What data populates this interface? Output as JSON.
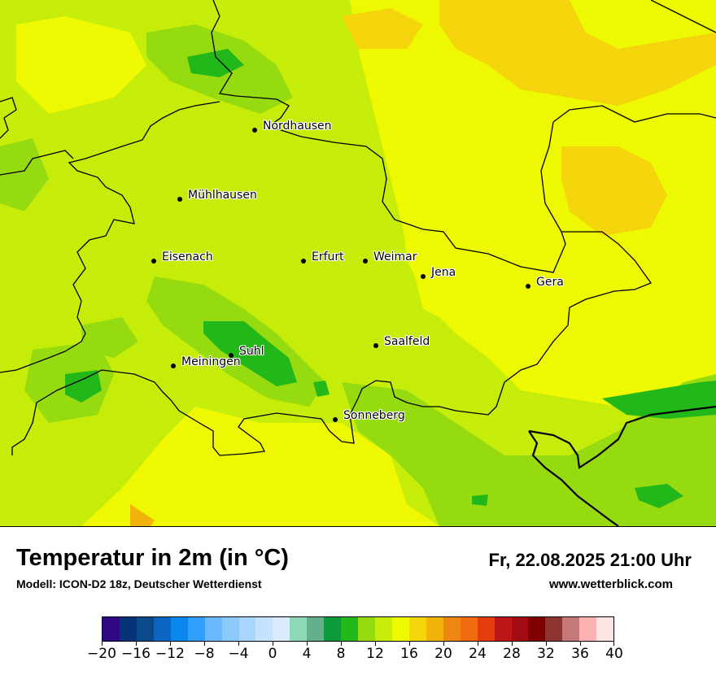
{
  "map": {
    "cities": [
      {
        "name": "Nordhausen"
      },
      {
        "name": "Mühlhausen"
      },
      {
        "name": "Eisenach"
      },
      {
        "name": "Erfurt"
      },
      {
        "name": "Weimar"
      },
      {
        "name": "Jena"
      },
      {
        "name": "Gera"
      },
      {
        "name": "Saalfeld"
      },
      {
        "name": "Suhl"
      },
      {
        "name": "Meiningen"
      },
      {
        "name": "Sonneberg"
      }
    ]
  },
  "footer": {
    "title": "Temperatur in 2m (in °C)",
    "subtitle": "Modell: ICON-D2 18z, Deutscher Wetterdienst",
    "datetime": "Fr, 22.08.2025 21:00 Uhr",
    "website": "www.wetterblick.com"
  },
  "legend": {
    "colors": [
      "#2e0882",
      "#06337a",
      "#0a4a8a",
      "#0a66c2",
      "#0a88ee",
      "#2ea0fc",
      "#6ab9fc",
      "#8ccafc",
      "#a8d6fc",
      "#c4e2fc",
      "#daecfc",
      "#8ed8b6",
      "#64b08a",
      "#0c9a3a",
      "#22b81a",
      "#96da10",
      "#c6ec0a",
      "#eef800",
      "#f4d40a",
      "#f2b20a",
      "#f08612",
      "#f06a0e",
      "#e43c0a",
      "#be1616",
      "#a40c14",
      "#800000",
      "#8e3432",
      "#c47878",
      "#fcb2b2",
      "#fce4e4"
    ],
    "tick_labels": [
      "−20",
      "−16",
      "−12",
      "−8",
      "−4",
      "0",
      "4",
      "8",
      "12",
      "16",
      "20",
      "24",
      "28",
      "32",
      "36",
      "40"
    ]
  }
}
